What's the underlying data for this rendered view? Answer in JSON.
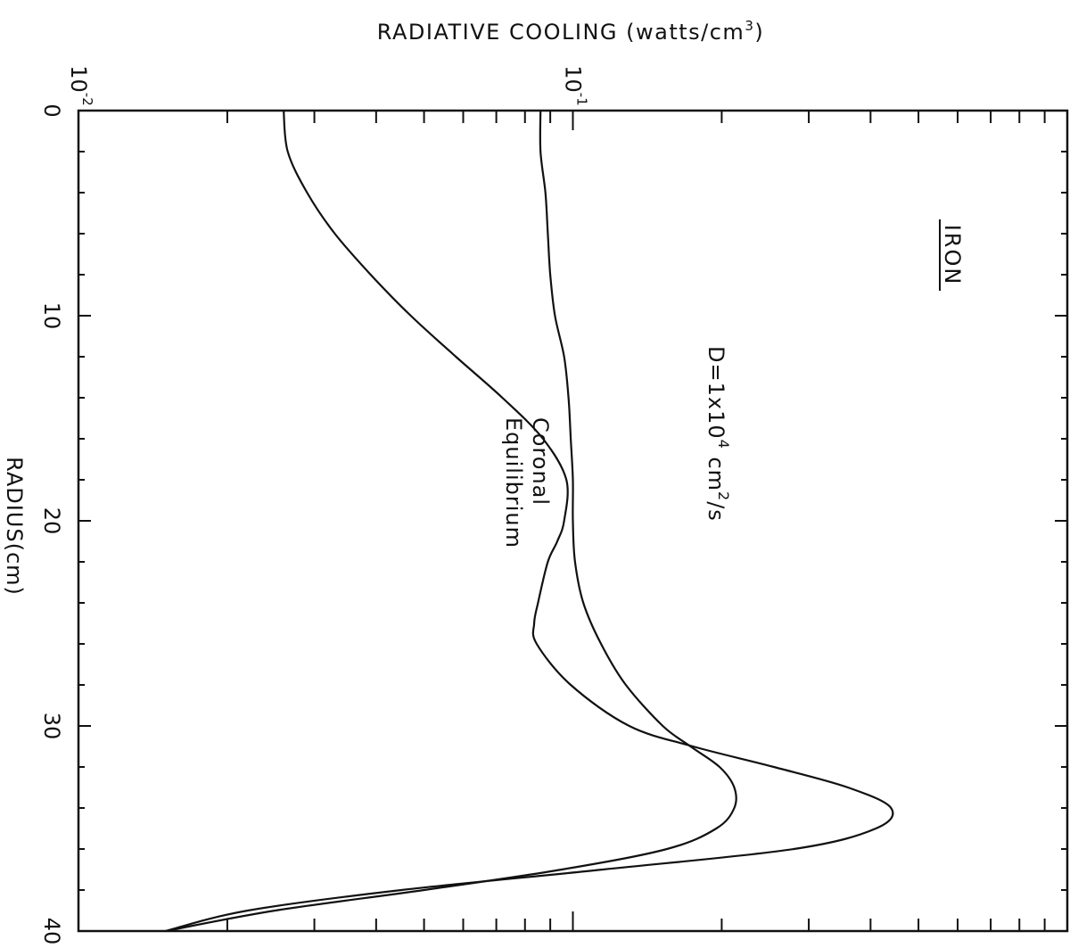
{
  "chart_data": {
    "type": "line",
    "title": "IRON",
    "xlabel": "RADIUS(cm)",
    "ylabel": "RADIATIVE COOLING (watts/cm3)",
    "ylabel_base": "RADIATIVE COOLING (watts/cm",
    "ylabel_sup": "3",
    "ylabel_close": ")",
    "x_scale": "linear",
    "y_scale": "log",
    "xlim": [
      0,
      40
    ],
    "ylim": [
      0.01,
      1
    ],
    "x_ticks": [
      0,
      10,
      20,
      30,
      40
    ],
    "x_tick_labels": [
      "0",
      "10",
      "20",
      "30",
      "40"
    ],
    "y_tick_labels": [
      {
        "value": 0.01,
        "base": "10",
        "exp": "-2"
      },
      {
        "value": 0.1,
        "base": "10",
        "exp": "-1"
      }
    ],
    "grid": false,
    "series": [
      {
        "name": "Coronal Equilibrium",
        "label_lines": [
          "Coronal",
          "Equilibrium"
        ],
        "x": [
          0,
          2,
          4,
          6,
          8,
          10,
          12,
          14,
          16,
          18,
          20,
          21,
          22,
          24,
          25,
          26,
          28,
          30,
          31,
          32,
          33,
          34,
          35,
          36,
          37,
          38,
          39,
          40
        ],
        "y": [
          0.026,
          0.0265,
          0.029,
          0.033,
          0.039,
          0.047,
          0.058,
          0.072,
          0.087,
          0.097,
          0.096,
          0.093,
          0.089,
          0.085,
          0.0835,
          0.0845,
          0.099,
          0.13,
          0.175,
          0.255,
          0.36,
          0.44,
          0.41,
          0.28,
          0.115,
          0.045,
          0.022,
          0.015
        ]
      },
      {
        "name": "D=1x10^4 cm^2/s",
        "label_base": "D=1x10",
        "label_exp": "4",
        "label_tail": "cm",
        "label_tail_exp": "2",
        "label_unit": "/s",
        "x": [
          0,
          2,
          4,
          6,
          8,
          10,
          12,
          14,
          16,
          18,
          20,
          22,
          24,
          26,
          28,
          30,
          31,
          32,
          33,
          34,
          35,
          36,
          37,
          38,
          39,
          40
        ],
        "y": [
          0.086,
          0.086,
          0.088,
          0.089,
          0.09,
          0.092,
          0.096,
          0.098,
          0.099,
          0.1,
          0.1,
          0.101,
          0.105,
          0.114,
          0.128,
          0.152,
          0.173,
          0.198,
          0.212,
          0.212,
          0.195,
          0.155,
          0.095,
          0.05,
          0.025,
          0.015
        ]
      }
    ]
  }
}
